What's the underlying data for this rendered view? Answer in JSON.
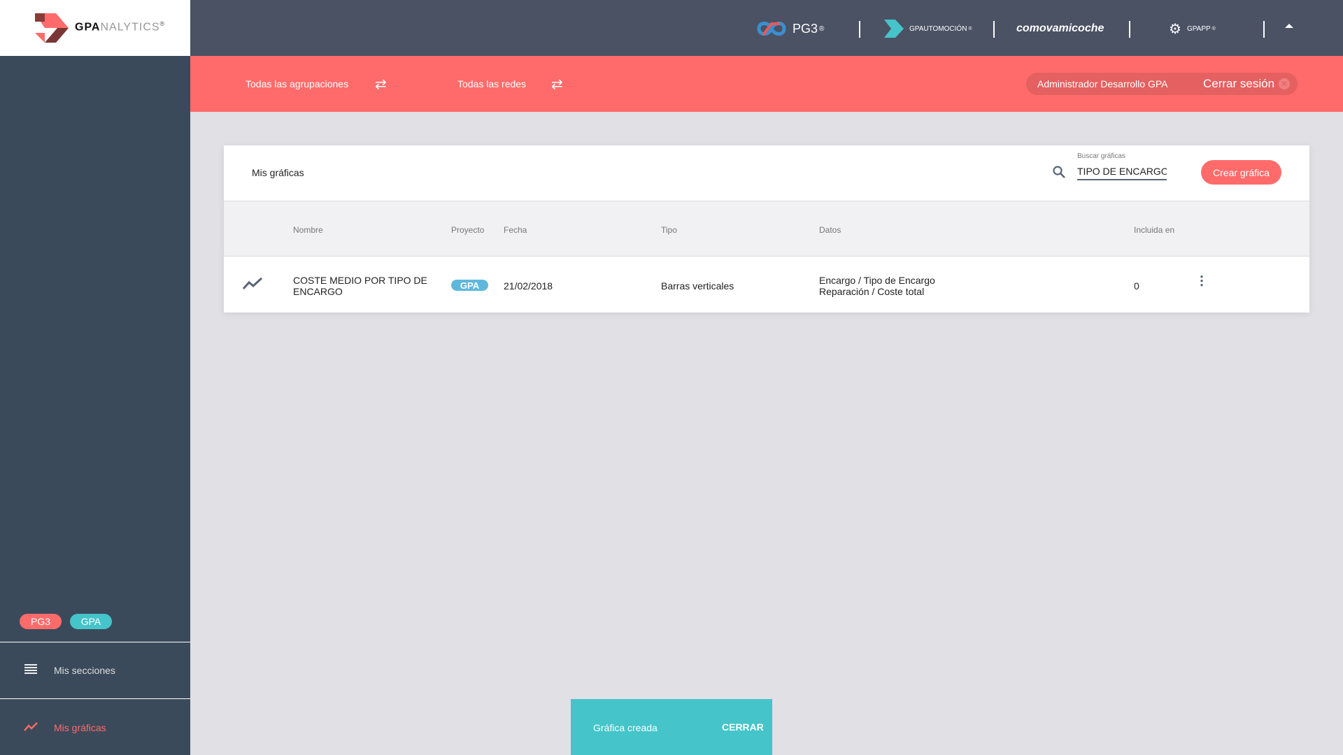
{
  "logo": {
    "text_bold": "GPA",
    "text_light": "NALYTICS",
    "reg": "®"
  },
  "topbar": {
    "brands": [
      {
        "name": "PG3",
        "reg": "®"
      },
      {
        "name": "GPAUTOMOCIÓN",
        "reg": "®"
      },
      {
        "name": "comovamicoche"
      },
      {
        "name": "GPAPP",
        "reg": "®"
      }
    ]
  },
  "filters": {
    "groupings": "Todas las agrupaciones",
    "networks": "Todas las redes"
  },
  "user": {
    "name": "Administrador Desarrollo GPA",
    "logout": "Cerrar sesión"
  },
  "card": {
    "title": "Mis gráficas",
    "search_label": "Buscar gráficas",
    "search_value": "TIPO DE ENCARGO",
    "create_button": "Crear gráfica"
  },
  "table": {
    "headers": [
      "Nombre",
      "Proyecto",
      "Fecha",
      "Tipo",
      "Datos",
      "Incluida en"
    ],
    "rows": [
      {
        "name_line1": "COSTE MEDIO POR TIPO DE",
        "name_line2": "ENCARGO",
        "project": "GPA",
        "date": "21/02/2018",
        "type": "Barras verticales",
        "data_line1": "Encargo / Tipo de Encargo",
        "data_line2": "Reparación / Coste total",
        "included": "0"
      }
    ]
  },
  "sidebar": {
    "chips": [
      "PG3",
      "GPA"
    ],
    "items": [
      {
        "label": "Mis secciones",
        "icon": "menu-icon"
      },
      {
        "label": "Mis gráficas",
        "icon": "trending-icon",
        "active": true
      }
    ]
  },
  "toast": {
    "message": "Gráfica creada",
    "action": "CERRAR"
  },
  "colors": {
    "accent": "#ff6b6b",
    "teal": "#45c4c9",
    "sidebar": "#3a4a5a",
    "topbar": "#4a5264",
    "badge": "#5fb8dc"
  }
}
